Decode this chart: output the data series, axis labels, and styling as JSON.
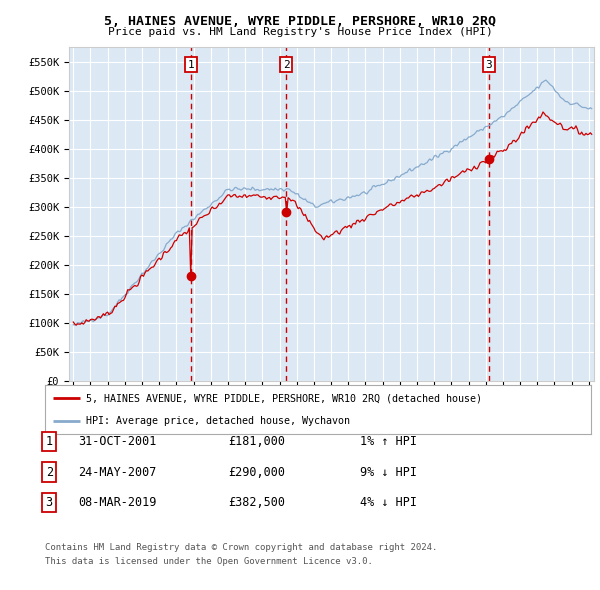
{
  "title": "5, HAINES AVENUE, WYRE PIDDLE, PERSHORE, WR10 2RQ",
  "subtitle": "Price paid vs. HM Land Registry's House Price Index (HPI)",
  "ylabel_ticks": [
    "£0",
    "£50K",
    "£100K",
    "£150K",
    "£200K",
    "£250K",
    "£300K",
    "£350K",
    "£400K",
    "£450K",
    "£500K",
    "£550K"
  ],
  "ylim": [
    0,
    575000
  ],
  "bg_color": "#dce9f5",
  "grid_color": "#ffffff",
  "sale_dates": [
    2001.833,
    2007.389,
    2019.18
  ],
  "sale_prices": [
    181000,
    290000,
    382500
  ],
  "sale_labels": [
    "1",
    "2",
    "3"
  ],
  "legend_property": "5, HAINES AVENUE, WYRE PIDDLE, PERSHORE, WR10 2RQ (detached house)",
  "legend_hpi": "HPI: Average price, detached house, Wychavon",
  "table_rows": [
    [
      "1",
      "31-OCT-2001",
      "£181,000",
      "1% ↑ HPI"
    ],
    [
      "2",
      "24-MAY-2007",
      "£290,000",
      "9% ↓ HPI"
    ],
    [
      "3",
      "08-MAR-2019",
      "£382,500",
      "4% ↓ HPI"
    ]
  ],
  "footnote1": "Contains HM Land Registry data © Crown copyright and database right 2024.",
  "footnote2": "This data is licensed under the Open Government Licence v3.0.",
  "property_line_color": "#cc0000",
  "hpi_line_color": "#88aacc",
  "dashed_line_color": "#cc0000"
}
